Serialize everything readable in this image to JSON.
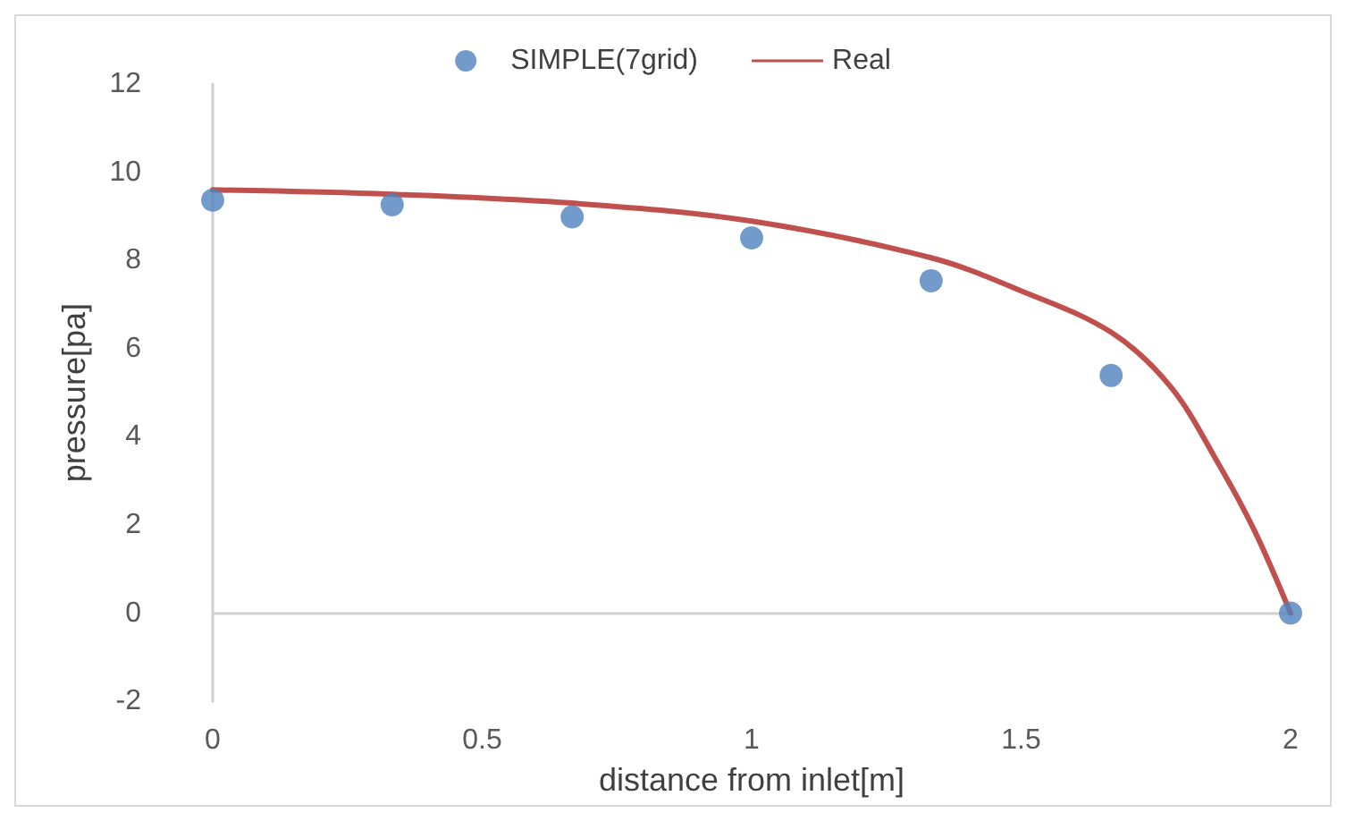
{
  "chart_data": {
    "type": "scatter",
    "xlabel": "distance from inlet[m]",
    "ylabel": "pressure[pa]",
    "xlim": [
      0,
      2
    ],
    "xticks": [
      0,
      0.5,
      1,
      1.5,
      2
    ],
    "ylim": [
      -2,
      12
    ],
    "yticks": [
      -2,
      0,
      2,
      4,
      6,
      8,
      10,
      12
    ],
    "legend": "top",
    "marker": "circle",
    "series": [
      {
        "name": "SIMPLE(7grid)",
        "color": "#4f81bd",
        "x": [
          0,
          0.333,
          0.667,
          1,
          1.333,
          1.667,
          2
        ],
        "values": [
          9.37,
          9.26,
          8.99,
          8.51,
          7.54,
          5.39,
          0
        ]
      },
      {
        "name": "Real",
        "type": "line",
        "color": "#c0504d",
        "line_style": "solid",
        "marker": "none",
        "x": [
          0,
          0.333,
          0.667,
          1,
          1.333,
          1.5,
          1.667,
          1.777,
          1.867,
          1.933,
          2
        ],
        "values": [
          9.6,
          9.5,
          9.3,
          8.89,
          8.06,
          7.31,
          6.37,
          5.14,
          3.37,
          1.87,
          0
        ]
      }
    ]
  }
}
